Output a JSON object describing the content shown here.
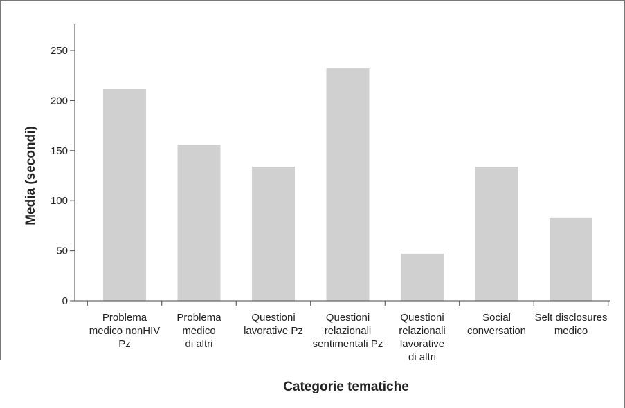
{
  "chart_data": {
    "type": "bar",
    "categories": [
      [
        "Problema",
        "medico nonHIV",
        "Pz"
      ],
      [
        "Problema",
        "medico",
        "di altri"
      ],
      [
        "Questioni",
        "lavorative Pz"
      ],
      [
        "Questioni",
        "relazionali",
        "sentimentali Pz"
      ],
      [
        "Questioni",
        "relazionali",
        "lavorative",
        "di altri"
      ],
      [
        "Social",
        "conversation"
      ],
      [
        "Selt disclosures",
        "medico"
      ]
    ],
    "values": [
      212,
      156,
      134,
      232,
      47,
      134,
      83
    ],
    "xlabel": "Categorie tematiche",
    "ylabel": "Media (secondi)",
    "ylim": [
      0,
      275
    ],
    "yticks": [
      0,
      50,
      100,
      150,
      200,
      250
    ],
    "bar_color": "#d0d0d0",
    "grid": false
  }
}
